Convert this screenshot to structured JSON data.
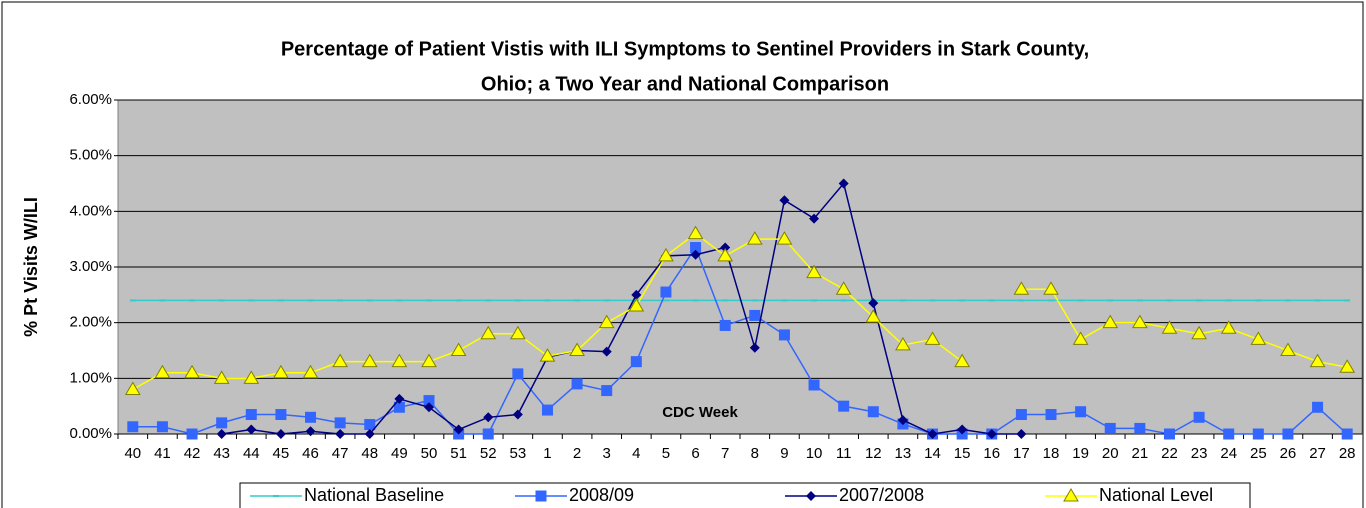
{
  "chart_data": {
    "type": "line",
    "title": [
      "Percentage of Patient Vistis with ILI Symptoms to Sentinel Providers in Stark County,",
      "Ohio; a Two Year and National Comparison"
    ],
    "x_label": "CDC Week",
    "y_label": "% Pt Visits W/ILI",
    "categories": [
      "40",
      "41",
      "42",
      "43",
      "44",
      "45",
      "46",
      "47",
      "48",
      "49",
      "50",
      "51",
      "52",
      "53",
      "1",
      "2",
      "3",
      "4",
      "5",
      "6",
      "7",
      "8",
      "9",
      "10",
      "11",
      "12",
      "13",
      "14",
      "15",
      "16",
      "17",
      "18",
      "19",
      "20",
      "21",
      "22",
      "23",
      "24",
      "25",
      "26",
      "27",
      "28"
    ],
    "series": [
      {
        "name": "National Baseline",
        "color": "#33cccc",
        "marker": "dash",
        "values": [
          2.4,
          2.4,
          2.4,
          2.4,
          2.4,
          2.4,
          2.4,
          2.4,
          2.4,
          2.4,
          2.4,
          2.4,
          2.4,
          2.4,
          2.4,
          2.4,
          2.4,
          2.4,
          2.4,
          2.4,
          2.4,
          2.4,
          2.4,
          2.4,
          2.4,
          2.4,
          2.4,
          2.4,
          2.4,
          2.4,
          2.4,
          2.4,
          2.4,
          2.4,
          2.4,
          2.4,
          2.4,
          2.4,
          2.4,
          2.4,
          2.4,
          2.4
        ]
      },
      {
        "name": "2008/09",
        "color": "#3366ff",
        "marker": "square",
        "values": [
          0.13,
          0.13,
          0,
          0.2,
          0.35,
          0.35,
          0.3,
          0.2,
          0.17,
          0.48,
          0.6,
          0,
          0,
          1.08,
          0.43,
          0.9,
          0.78,
          1.3,
          2.55,
          3.35,
          1.95,
          2.13,
          1.78,
          0.88,
          0.5,
          0.4,
          0.18,
          0,
          0,
          0,
          0.35,
          0.35,
          0.4,
          0.1,
          0.1,
          0,
          0.3,
          0,
          0,
          0,
          0.48,
          0
        ]
      },
      {
        "name": "2007/2008",
        "color": "#000080",
        "marker": "diamond",
        "values": [
          null,
          null,
          null,
          0,
          0.08,
          0,
          0.05,
          0,
          0,
          0.63,
          0.48,
          0.08,
          0.3,
          0.35,
          1.38,
          1.5,
          1.48,
          2.5,
          3.2,
          3.22,
          3.35,
          1.55,
          4.2,
          3.87,
          4.5,
          2.35,
          0.25,
          0,
          0.08,
          0,
          0,
          null,
          null,
          null,
          null,
          null,
          null,
          null,
          null,
          null,
          null,
          null
        ]
      },
      {
        "name": "National Level",
        "color": "#ffff00",
        "marker": "triangle",
        "values": [
          0.8,
          1.1,
          1.1,
          1.0,
          1.0,
          1.1,
          1.1,
          1.3,
          1.3,
          1.3,
          1.3,
          1.5,
          1.8,
          1.8,
          1.4,
          1.5,
          2.0,
          2.3,
          3.2,
          3.6,
          3.2,
          3.5,
          3.5,
          2.9,
          2.6,
          2.1,
          1.6,
          1.7,
          1.3,
          null,
          2.6,
          2.6,
          1.7,
          2.0,
          2.0,
          1.9,
          1.8,
          1.9,
          1.7,
          1.5,
          1.3,
          1.2
        ]
      }
    ],
    "ylim": [
      0,
      6
    ],
    "yticks": [
      {
        "value": 0,
        "label": "0.00%"
      },
      {
        "value": 1,
        "label": "1.00%"
      },
      {
        "value": 2,
        "label": "2.00%"
      },
      {
        "value": 3,
        "label": "3.00%"
      },
      {
        "value": 4,
        "label": "4.00%"
      },
      {
        "value": 5,
        "label": "5.00%"
      },
      {
        "value": 6,
        "label": "6.00%"
      }
    ],
    "grid": true,
    "legend": "bottom"
  }
}
